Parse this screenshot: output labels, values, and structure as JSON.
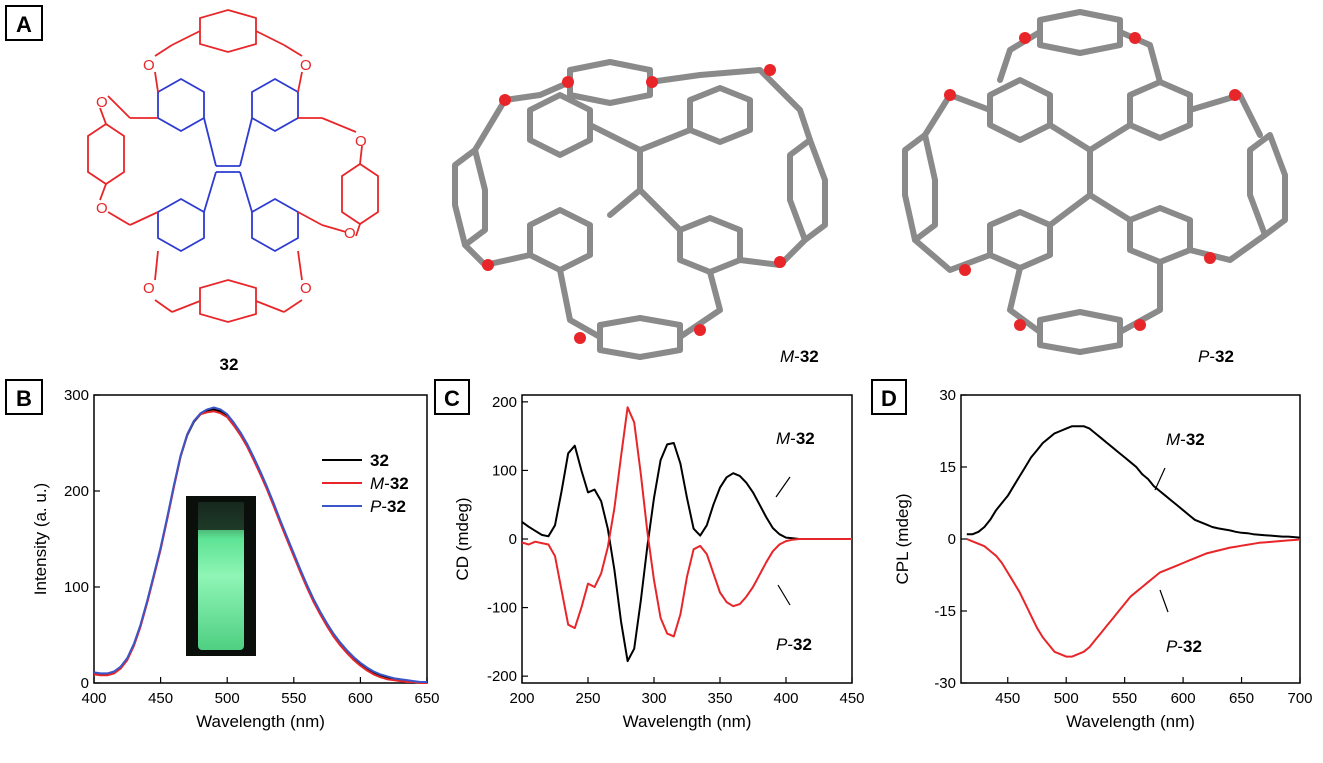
{
  "panels": {
    "A": {
      "label": "A",
      "captions": {
        "c32": "32",
        "m32_prefix": "M",
        "m32_num": "32",
        "p32_prefix": "P",
        "p32_num": "32"
      }
    },
    "B": {
      "label": "B"
    },
    "C": {
      "label": "C"
    },
    "D": {
      "label": "D"
    }
  },
  "colors": {
    "black_series": "#000000",
    "red_series": "#e8262a",
    "blue_series": "#3a56c8",
    "structure_red": "#e8262a",
    "structure_blue": "#2d3bd1",
    "vial_glow": "#7cf0a8"
  },
  "chart_data": [
    {
      "id": "B",
      "type": "line",
      "xlabel": "Wavelength (nm)",
      "ylabel": "Intensity (a. u.)",
      "xlim": [
        400,
        650
      ],
      "ylim": [
        0,
        300
      ],
      "xticks": [
        400,
        450,
        500,
        550,
        600,
        650
      ],
      "yticks": [
        0,
        100,
        200,
        300
      ],
      "legend_position": "right",
      "legend": [
        {
          "prefix": "",
          "num": "32",
          "color": "#000000"
        },
        {
          "prefix": "M",
          "num": "32",
          "color": "#e8262a"
        },
        {
          "prefix": "P",
          "num": "32",
          "color": "#3a56c8"
        }
      ],
      "x": [
        400,
        405,
        410,
        415,
        420,
        425,
        430,
        435,
        440,
        445,
        450,
        455,
        460,
        465,
        470,
        475,
        480,
        485,
        490,
        495,
        500,
        505,
        510,
        515,
        520,
        525,
        530,
        535,
        540,
        545,
        550,
        555,
        560,
        565,
        570,
        575,
        580,
        585,
        590,
        595,
        600,
        605,
        610,
        615,
        620,
        625,
        630,
        635,
        640,
        645,
        650
      ],
      "series": [
        {
          "color": "#000000",
          "values": [
            10,
            9,
            9,
            11,
            16,
            25,
            40,
            60,
            85,
            112,
            140,
            172,
            205,
            236,
            258,
            272,
            280,
            284,
            285,
            283,
            278,
            270,
            260,
            248,
            234,
            219,
            203,
            186,
            168,
            151,
            134,
            117,
            101,
            86,
            73,
            61,
            50,
            41,
            33,
            26,
            20,
            15,
            11,
            8,
            6,
            4,
            3,
            2,
            1,
            1,
            1
          ]
        },
        {
          "color": "#e8262a",
          "values": [
            9,
            8,
            8,
            10,
            15,
            24,
            39,
            59,
            84,
            111,
            139,
            171,
            204,
            236,
            259,
            273,
            280,
            282,
            283,
            281,
            277,
            268,
            258,
            246,
            232,
            217,
            201,
            184,
            166,
            149,
            132,
            115,
            99,
            84,
            71,
            59,
            48,
            39,
            31,
            24,
            18,
            13,
            9,
            6,
            4,
            3,
            2,
            1,
            1,
            0,
            0
          ]
        },
        {
          "color": "#3a56c8",
          "values": [
            11,
            10,
            10,
            12,
            17,
            26,
            41,
            61,
            86,
            113,
            141,
            173,
            206,
            237,
            259,
            273,
            281,
            285,
            287,
            285,
            280,
            271,
            261,
            249,
            235,
            220,
            204,
            187,
            169,
            152,
            135,
            118,
            102,
            87,
            74,
            62,
            51,
            42,
            34,
            27,
            21,
            16,
            12,
            9,
            7,
            5,
            4,
            3,
            2,
            1,
            1
          ]
        }
      ]
    },
    {
      "id": "C",
      "type": "line",
      "xlabel": "Wavelength (nm)",
      "ylabel": "CD (mdeg)",
      "xlim": [
        200,
        450
      ],
      "ylim": [
        -210,
        210
      ],
      "xticks": [
        200,
        250,
        300,
        350,
        400,
        450
      ],
      "yticks": [
        -200,
        -100,
        0,
        100,
        200
      ],
      "annotations": [
        {
          "prefix": "M",
          "num": "32",
          "color": "#000000"
        },
        {
          "prefix": "P",
          "num": "32",
          "color": "#000000"
        }
      ],
      "x": [
        200,
        205,
        210,
        215,
        220,
        225,
        230,
        235,
        240,
        245,
        250,
        255,
        260,
        265,
        270,
        275,
        280,
        285,
        290,
        295,
        300,
        305,
        310,
        315,
        320,
        325,
        330,
        335,
        340,
        345,
        350,
        355,
        360,
        365,
        370,
        375,
        380,
        385,
        390,
        395,
        400,
        405,
        410,
        415,
        420,
        425,
        430,
        435,
        440,
        445,
        450
      ],
      "series": [
        {
          "name": "M-32",
          "color": "#000000",
          "values": [
            25,
            18,
            12,
            6,
            4,
            20,
            70,
            125,
            136,
            100,
            68,
            72,
            55,
            15,
            -45,
            -120,
            -178,
            -160,
            -90,
            -10,
            60,
            115,
            138,
            140,
            110,
            60,
            15,
            5,
            20,
            50,
            75,
            90,
            96,
            92,
            82,
            68,
            50,
            32,
            16,
            7,
            2,
            1,
            0,
            0,
            0,
            0,
            0,
            0,
            0,
            0,
            0
          ]
        },
        {
          "name": "P-32",
          "color": "#e8262a",
          "values": [
            -5,
            -8,
            -4,
            -6,
            -8,
            -25,
            -75,
            -125,
            -130,
            -100,
            -65,
            -70,
            -50,
            -12,
            45,
            120,
            192,
            170,
            95,
            10,
            -60,
            -115,
            -138,
            -142,
            -110,
            -55,
            -15,
            -10,
            -22,
            -50,
            -78,
            -92,
            -98,
            -95,
            -84,
            -70,
            -52,
            -34,
            -18,
            -8,
            -3,
            -1,
            0,
            0,
            0,
            0,
            0,
            0,
            0,
            0,
            0
          ]
        }
      ]
    },
    {
      "id": "D",
      "type": "line",
      "xlabel": "Wavelength (nm)",
      "ylabel": "CPL (mdeg)",
      "xlim": [
        410,
        700
      ],
      "ylim": [
        -30,
        30
      ],
      "xticks": [
        450,
        500,
        550,
        600,
        650,
        700
      ],
      "yticks": [
        -30,
        -15,
        0,
        15,
        30
      ],
      "annotations": [
        {
          "prefix": "M",
          "num": "32",
          "color": "#000000"
        },
        {
          "prefix": "P",
          "num": "32",
          "color": "#000000"
        }
      ],
      "x": [
        415,
        420,
        425,
        430,
        435,
        440,
        445,
        450,
        455,
        460,
        465,
        470,
        475,
        480,
        485,
        490,
        495,
        500,
        505,
        510,
        515,
        520,
        525,
        530,
        535,
        540,
        545,
        550,
        555,
        560,
        565,
        570,
        575,
        580,
        585,
        590,
        595,
        600,
        605,
        610,
        615,
        620,
        625,
        630,
        635,
        640,
        645,
        650,
        655,
        660,
        665,
        670,
        675,
        680,
        685,
        690,
        695,
        700
      ],
      "series": [
        {
          "name": "M-32",
          "color": "#000000",
          "values": [
            1,
            1,
            1.5,
            2.5,
            4,
            6,
            7.5,
            9,
            11,
            13,
            15,
            17,
            18.5,
            20,
            21,
            22,
            22.5,
            23,
            23.5,
            23.5,
            23.5,
            23,
            22,
            21,
            20,
            19,
            18,
            17,
            16,
            15,
            13.5,
            12.5,
            11,
            10,
            9,
            8,
            7,
            6,
            5,
            4,
            3.5,
            3,
            2.5,
            2.2,
            2,
            1.8,
            1.5,
            1.3,
            1.2,
            1,
            0.9,
            0.8,
            0.7,
            0.6,
            0.5,
            0.5,
            0.4,
            0.3
          ]
        },
        {
          "name": "P-32",
          "color": "#e8262a",
          "values": [
            0,
            -0.5,
            -1,
            -1.5,
            -2.5,
            -3.5,
            -5,
            -7,
            -9,
            -11,
            -13.5,
            -16,
            -18.5,
            -20.5,
            -22,
            -23.5,
            -24,
            -24.5,
            -24.5,
            -24,
            -23.5,
            -22.5,
            -21,
            -19.5,
            -18,
            -16.5,
            -15,
            -13.5,
            -12,
            -11,
            -10,
            -9,
            -8,
            -7,
            -6.5,
            -6,
            -5.5,
            -5,
            -4.5,
            -4,
            -3.5,
            -3,
            -2.7,
            -2.4,
            -2.1,
            -1.8,
            -1.6,
            -1.4,
            -1.2,
            -1,
            -0.8,
            -0.7,
            -0.6,
            -0.5,
            -0.4,
            -0.3,
            -0.2,
            -0.1
          ]
        }
      ]
    }
  ]
}
